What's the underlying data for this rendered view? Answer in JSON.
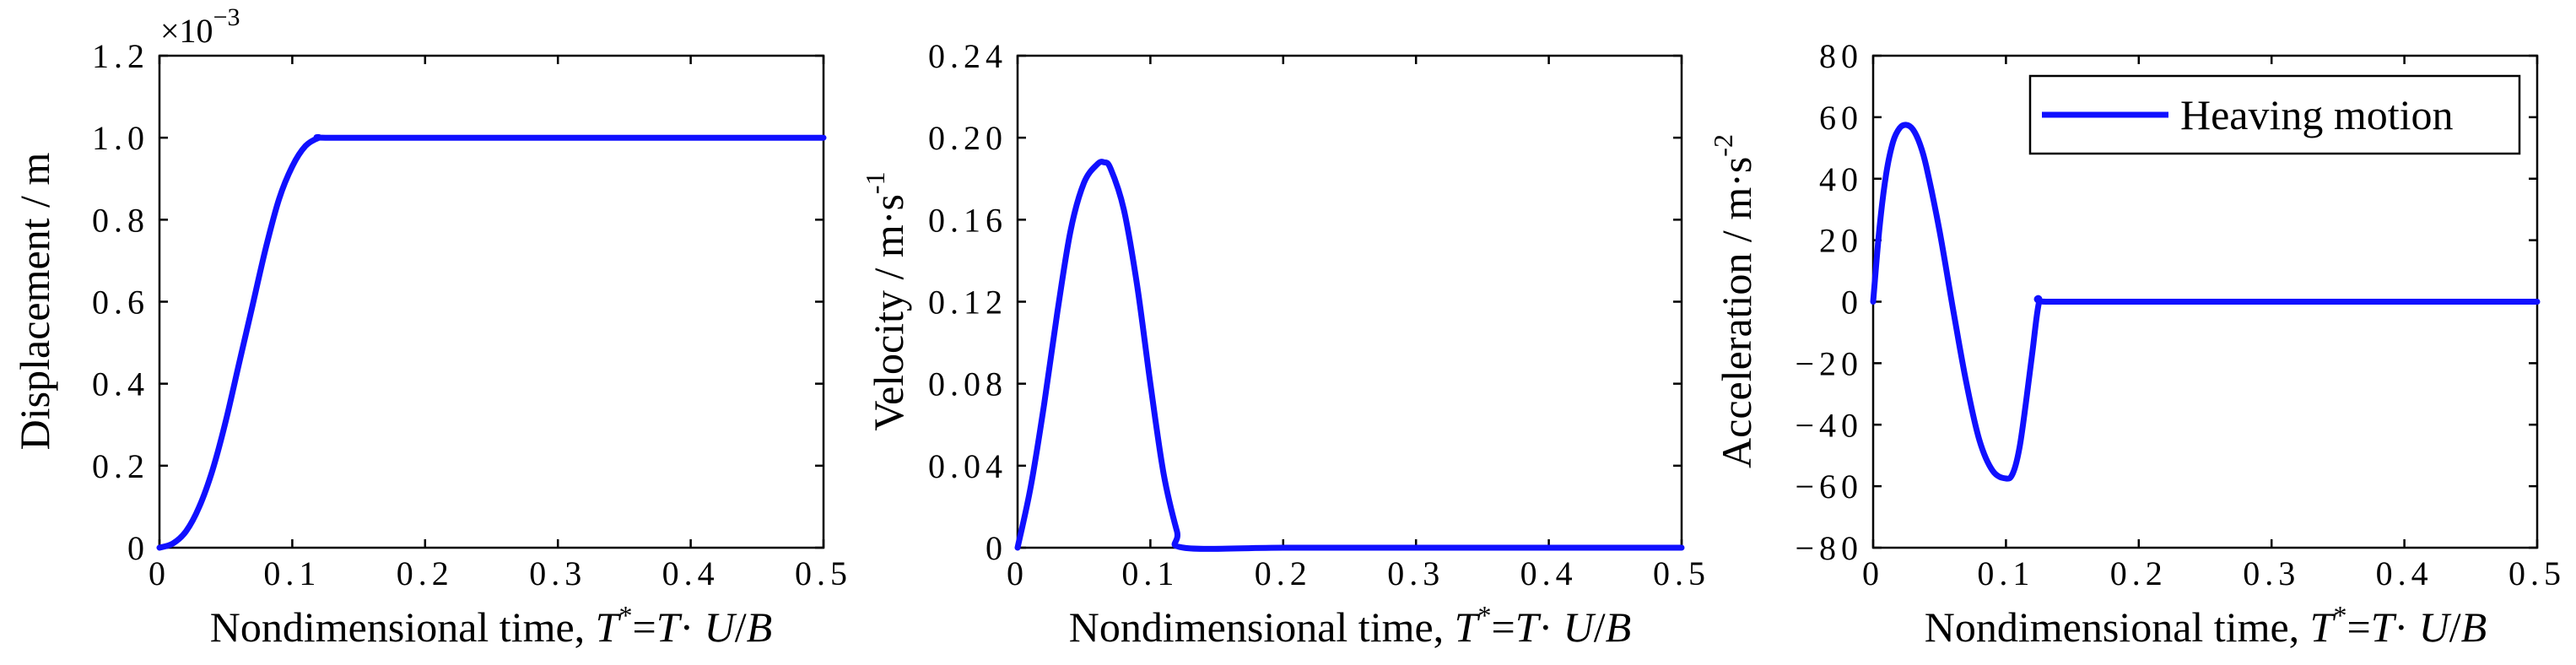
{
  "colors": {
    "series": "#1010ff",
    "axes": "#000000",
    "background": "#ffffff"
  },
  "chart_data": [
    {
      "type": "line",
      "xlabel_parts": [
        "Nondimensional time, ",
        "T",
        "*",
        "=",
        "T",
        "· ",
        "U",
        "/",
        "B"
      ],
      "ylabel": "Displacement / m",
      "multiplier": [
        "×10",
        "−3"
      ],
      "xlim": [
        0,
        0.5
      ],
      "ylim": [
        0,
        1.2
      ],
      "xticks": [
        "0",
        "0.1",
        "0.2",
        "0.3",
        "0.4",
        "0.5"
      ],
      "yticks": [
        "0",
        "0.2",
        "0.4",
        "0.6",
        "0.8",
        "1.0",
        "1.2"
      ],
      "series": [
        {
          "x": [
            0,
            0.01,
            0.02,
            0.03,
            0.04,
            0.05,
            0.06,
            0.07,
            0.08,
            0.09,
            0.1,
            0.11,
            0.12,
            0.125,
            0.2,
            0.3,
            0.4,
            0.5
          ],
          "y": [
            0,
            0.01,
            0.04,
            0.1,
            0.19,
            0.31,
            0.45,
            0.59,
            0.73,
            0.85,
            0.93,
            0.98,
            1.0,
            1.0,
            1.0,
            1.0,
            1.0,
            1.0
          ]
        }
      ]
    },
    {
      "type": "line",
      "xlabel_parts": [
        "Nondimensional time, ",
        "T",
        "*",
        "=",
        "T",
        "· ",
        "U",
        "/",
        "B"
      ],
      "ylabel_parts": [
        "Velocity / m·s",
        "-1"
      ],
      "xlim": [
        0,
        0.5
      ],
      "ylim": [
        0,
        0.24
      ],
      "xticks": [
        "0",
        "0.1",
        "0.2",
        "0.3",
        "0.4",
        "0.5"
      ],
      "yticks": [
        "0",
        "0.04",
        "0.08",
        "0.12",
        "0.16",
        "0.20",
        "0.24"
      ],
      "series": [
        {
          "x": [
            0,
            0.01,
            0.02,
            0.03,
            0.04,
            0.05,
            0.06,
            0.065,
            0.07,
            0.08,
            0.09,
            0.1,
            0.11,
            0.12,
            0.125,
            0.2,
            0.3,
            0.4,
            0.5
          ],
          "y": [
            0,
            0.03,
            0.07,
            0.115,
            0.155,
            0.178,
            0.187,
            0.188,
            0.185,
            0.165,
            0.128,
            0.08,
            0.036,
            0.008,
            0,
            0,
            0,
            0,
            0
          ]
        }
      ]
    },
    {
      "type": "line",
      "xlabel_parts": [
        "Nondimensional time, ",
        "T",
        "*",
        "=",
        "T",
        "· ",
        "U",
        "/",
        "B"
      ],
      "ylabel_parts": [
        "Acceleration / m·s",
        "-2"
      ],
      "xlim": [
        0,
        0.5
      ],
      "ylim": [
        -80,
        80
      ],
      "xticks": [
        "0",
        "0.1",
        "0.2",
        "0.3",
        "0.4",
        "0.5"
      ],
      "yticks": [
        "−80",
        "−60",
        "−40",
        "−20",
        "0",
        "20",
        "40",
        "60",
        "80"
      ],
      "legend": {
        "position": "top-right",
        "entries": [
          "Heaving motion"
        ]
      },
      "series": [
        {
          "name": "Heaving motion",
          "x": [
            0,
            0.005,
            0.01,
            0.015,
            0.02,
            0.025,
            0.03,
            0.035,
            0.04,
            0.05,
            0.06,
            0.07,
            0.08,
            0.09,
            0.1,
            0.105,
            0.11,
            0.115,
            0.12,
            0.125,
            0.13,
            0.2,
            0.3,
            0.4,
            0.5
          ],
          "y": [
            0,
            25,
            42,
            52,
            56.5,
            57.5,
            56,
            51.5,
            44,
            23,
            -2,
            -26,
            -45,
            -55,
            -57.5,
            -56,
            -48,
            -33,
            -16,
            0,
            0,
            0,
            0,
            0,
            0
          ]
        }
      ]
    }
  ]
}
